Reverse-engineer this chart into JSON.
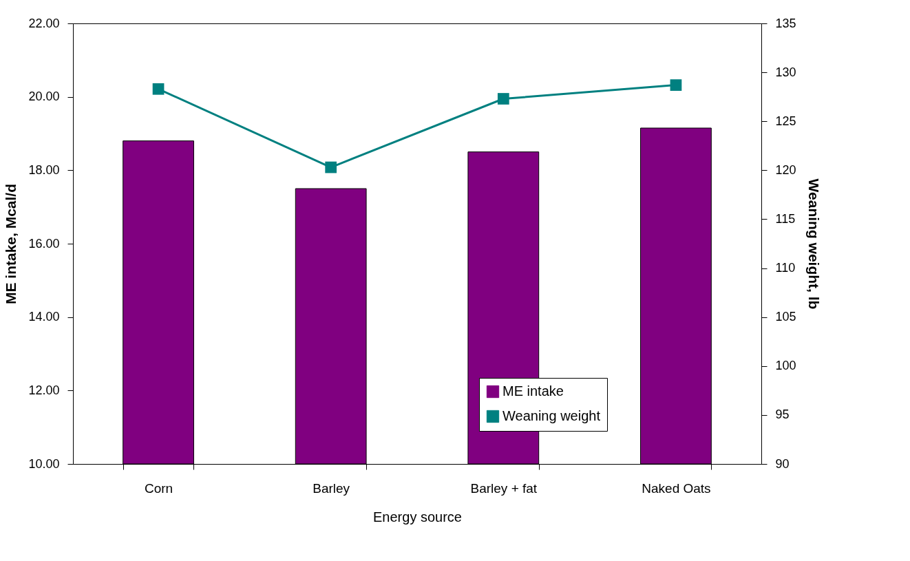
{
  "chart_data": {
    "type": "bar",
    "xlabel": "Energy source",
    "ylabel": "ME intake, Mcal/d",
    "y2label": "Weaning weight, lb",
    "categories": [
      "Corn",
      "Barley",
      "Barley + fat",
      "Naked Oats"
    ],
    "series": [
      {
        "name": "ME intake",
        "color": "#800080",
        "values": [
          18.8,
          17.5,
          18.5,
          19.15
        ]
      },
      {
        "name": "Weaning weight",
        "type": "line",
        "axis": "y2",
        "color": "#008080",
        "values": [
          128.3,
          120.3,
          127.3,
          128.7
        ]
      }
    ],
    "ylim": [
      10,
      22
    ],
    "yticks": [
      {
        "value": 10,
        "label": "10.00"
      },
      {
        "value": 12,
        "label": "12.00"
      },
      {
        "value": 14,
        "label": "14.00"
      },
      {
        "value": 16,
        "label": "16.00"
      },
      {
        "value": 18,
        "label": "18.00"
      },
      {
        "value": 20,
        "label": "20.00"
      },
      {
        "value": 22,
        "label": "22.00"
      }
    ],
    "y2lim": [
      90,
      135
    ],
    "y2ticks": [
      90,
      95,
      100,
      105,
      110,
      115,
      120,
      125,
      130,
      135
    ],
    "legend": "bottom right",
    "marker": "square",
    "grid": false
  }
}
